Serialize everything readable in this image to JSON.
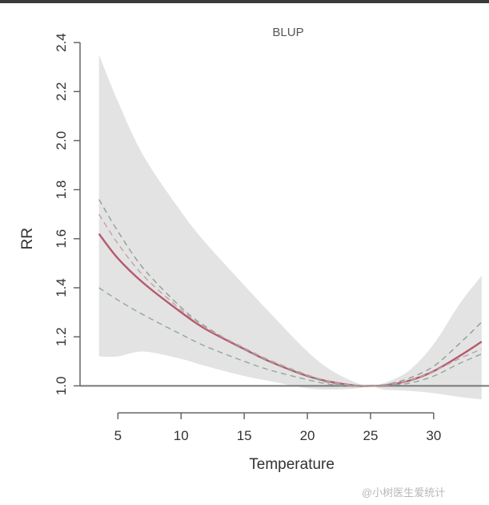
{
  "chart_data": {
    "type": "line",
    "title": "BLUP",
    "xlabel": "Temperature",
    "ylabel": "RR",
    "xlim": [
      2,
      34
    ],
    "ylim": [
      0.89,
      2.41
    ],
    "x_ticks": [
      5,
      10,
      15,
      20,
      25,
      30
    ],
    "y_ticks": [
      1.0,
      1.2,
      1.4,
      1.6,
      1.8,
      2.0,
      2.2,
      2.4
    ],
    "y_tick_labels": [
      "1.0",
      "1.2",
      "1.4",
      "1.6",
      "1.8",
      "2.0",
      "2.2",
      "2.4"
    ],
    "reference_line": 1.0,
    "x": [
      3.5,
      5,
      7,
      10,
      12,
      15,
      17,
      20,
      22,
      24,
      25,
      26,
      28,
      30,
      32,
      33.8
    ],
    "confidence_band": {
      "upper": [
        2.35,
        2.16,
        1.94,
        1.71,
        1.58,
        1.41,
        1.3,
        1.14,
        1.06,
        1.01,
        1.0,
        1.01,
        1.06,
        1.17,
        1.33,
        1.45
      ],
      "lower": [
        1.12,
        1.12,
        1.14,
        1.11,
        1.08,
        1.04,
        1.02,
        0.99,
        0.985,
        0.99,
        1.0,
        0.985,
        0.98,
        0.97,
        0.955,
        0.945
      ]
    },
    "series": [
      {
        "name": "",
        "style": "solid",
        "color": "#b55a6c",
        "values": [
          1.62,
          1.52,
          1.42,
          1.3,
          1.23,
          1.15,
          1.1,
          1.04,
          1.015,
          1.0,
          1.0,
          1.002,
          1.02,
          1.06,
          1.12,
          1.18
        ]
      },
      {
        "name": "",
        "style": "dashed",
        "color": "#8e9e96",
        "values": [
          1.76,
          1.63,
          1.48,
          1.32,
          1.24,
          1.15,
          1.1,
          1.04,
          1.01,
          1.0,
          1.0,
          1.003,
          1.03,
          1.08,
          1.17,
          1.26
        ]
      },
      {
        "name": "",
        "style": "dashed",
        "color": "#c4a0a8",
        "values": [
          1.7,
          1.58,
          1.45,
          1.31,
          1.235,
          1.155,
          1.105,
          1.045,
          1.015,
          1.0,
          1.0,
          1.002,
          1.02,
          1.06,
          1.11,
          1.15
        ]
      },
      {
        "name": "",
        "style": "dashed",
        "color": "#8fa99a",
        "values": [
          1.4,
          1.35,
          1.29,
          1.21,
          1.16,
          1.1,
          1.065,
          1.025,
          1.005,
          1.0,
          1.0,
          1.001,
          1.01,
          1.04,
          1.09,
          1.13
        ]
      }
    ],
    "grid": false,
    "colors": {
      "band": "#e3e3e3",
      "axis": "#666666",
      "reference": "#777777"
    }
  },
  "watermark_text": "@小树医生爱统计"
}
